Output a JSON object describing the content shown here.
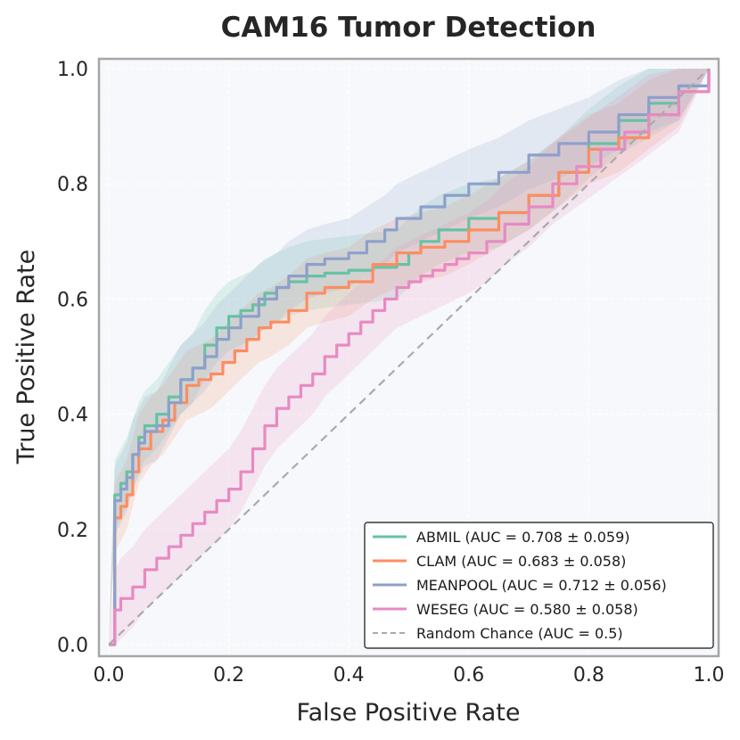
{
  "chart_data": {
    "type": "line",
    "title": "CAM16 Tumor Detection",
    "xlabel": "False Positive Rate",
    "ylabel": "True Positive Rate",
    "xlim": [
      0.0,
      1.0
    ],
    "ylim": [
      0.0,
      1.0
    ],
    "xticks": [
      "0.0",
      "0.2",
      "0.4",
      "0.6",
      "0.8",
      "1.0"
    ],
    "yticks": [
      "0.0",
      "0.2",
      "0.4",
      "0.6",
      "0.8",
      "1.0"
    ],
    "grid": true,
    "legend_position": "lower-right",
    "series": [
      {
        "name": "ABMIL",
        "legend": "ABMIL (AUC = 0.708 ± 0.059)",
        "color": "#66c2a5",
        "x": [
          0.0,
          0.01,
          0.02,
          0.03,
          0.04,
          0.05,
          0.06,
          0.08,
          0.1,
          0.12,
          0.14,
          0.16,
          0.18,
          0.2,
          0.22,
          0.24,
          0.26,
          0.28,
          0.3,
          0.33,
          0.36,
          0.4,
          0.44,
          0.48,
          0.5,
          0.52,
          0.55,
          0.6,
          0.65,
          0.7,
          0.75,
          0.8,
          0.85,
          0.9,
          0.95,
          1.0
        ],
        "y": [
          0.0,
          0.26,
          0.28,
          0.3,
          0.33,
          0.36,
          0.38,
          0.4,
          0.43,
          0.46,
          0.48,
          0.52,
          0.55,
          0.57,
          0.58,
          0.59,
          0.61,
          0.62,
          0.63,
          0.64,
          0.645,
          0.65,
          0.655,
          0.66,
          0.68,
          0.7,
          0.72,
          0.74,
          0.75,
          0.78,
          0.82,
          0.87,
          0.91,
          0.94,
          0.97,
          1.0
        ],
        "band": 0.06
      },
      {
        "name": "CLAM",
        "legend": "CLAM (AUC = 0.683 ± 0.058)",
        "color": "#fc8d62",
        "x": [
          0.0,
          0.01,
          0.02,
          0.03,
          0.04,
          0.05,
          0.07,
          0.09,
          0.11,
          0.13,
          0.15,
          0.17,
          0.19,
          0.21,
          0.23,
          0.25,
          0.27,
          0.3,
          0.33,
          0.36,
          0.4,
          0.44,
          0.48,
          0.52,
          0.56,
          0.6,
          0.65,
          0.7,
          0.75,
          0.8,
          0.85,
          0.9,
          0.95,
          1.0
        ],
        "y": [
          0.0,
          0.22,
          0.24,
          0.26,
          0.3,
          0.34,
          0.37,
          0.39,
          0.42,
          0.45,
          0.46,
          0.47,
          0.49,
          0.51,
          0.53,
          0.55,
          0.56,
          0.58,
          0.61,
          0.62,
          0.63,
          0.66,
          0.68,
          0.69,
          0.7,
          0.72,
          0.75,
          0.78,
          0.82,
          0.86,
          0.88,
          0.92,
          0.96,
          1.0
        ],
        "band": 0.06
      },
      {
        "name": "MEANPOOL",
        "legend": "MEANPOOL (AUC = 0.712 ± 0.056)",
        "color": "#8da0cb",
        "x": [
          0.0,
          0.01,
          0.02,
          0.03,
          0.04,
          0.05,
          0.06,
          0.08,
          0.1,
          0.12,
          0.14,
          0.16,
          0.18,
          0.2,
          0.22,
          0.25,
          0.28,
          0.3,
          0.33,
          0.36,
          0.4,
          0.43,
          0.46,
          0.48,
          0.52,
          0.56,
          0.6,
          0.65,
          0.7,
          0.75,
          0.8,
          0.85,
          0.9,
          0.95,
          1.0
        ],
        "y": [
          0.0,
          0.25,
          0.27,
          0.29,
          0.33,
          0.35,
          0.37,
          0.38,
          0.42,
          0.46,
          0.48,
          0.5,
          0.53,
          0.55,
          0.57,
          0.6,
          0.62,
          0.64,
          0.66,
          0.67,
          0.68,
          0.7,
          0.72,
          0.74,
          0.76,
          0.78,
          0.8,
          0.82,
          0.85,
          0.87,
          0.89,
          0.92,
          0.95,
          0.97,
          1.0
        ],
        "band": 0.06
      },
      {
        "name": "WESEG",
        "legend": "WESEG (AUC = 0.580 ± 0.058)",
        "color": "#e78ac3",
        "x": [
          0.0,
          0.01,
          0.02,
          0.04,
          0.06,
          0.08,
          0.1,
          0.12,
          0.14,
          0.16,
          0.18,
          0.2,
          0.22,
          0.24,
          0.26,
          0.28,
          0.3,
          0.32,
          0.34,
          0.36,
          0.38,
          0.4,
          0.42,
          0.44,
          0.46,
          0.48,
          0.5,
          0.52,
          0.54,
          0.56,
          0.58,
          0.6,
          0.63,
          0.66,
          0.7,
          0.74,
          0.78,
          0.82,
          0.86,
          0.9,
          0.95,
          1.0
        ],
        "y": [
          0.0,
          0.06,
          0.08,
          0.1,
          0.13,
          0.15,
          0.17,
          0.19,
          0.21,
          0.23,
          0.25,
          0.27,
          0.3,
          0.34,
          0.38,
          0.41,
          0.43,
          0.45,
          0.47,
          0.5,
          0.52,
          0.54,
          0.56,
          0.58,
          0.6,
          0.62,
          0.63,
          0.64,
          0.65,
          0.66,
          0.67,
          0.68,
          0.7,
          0.73,
          0.76,
          0.8,
          0.83,
          0.86,
          0.89,
          0.92,
          0.96,
          1.0
        ],
        "band": 0.07
      }
    ],
    "reference": {
      "name": "Random Chance",
      "legend": "Random Chance (AUC = 0.5)",
      "color": "#aaaaaa",
      "x": [
        0.0,
        1.0
      ],
      "y": [
        0.0,
        1.0
      ]
    }
  }
}
